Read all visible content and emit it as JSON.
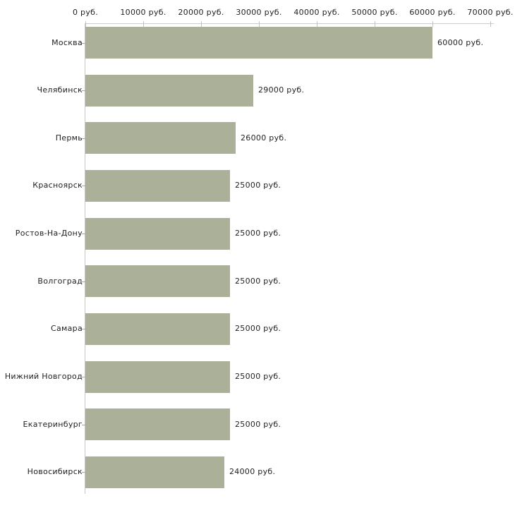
{
  "chart_data": {
    "type": "bar",
    "orientation": "horizontal",
    "title": "",
    "categories": [
      "Москва",
      "Челябинск",
      "Пермь",
      "Красноярск",
      "Ростов-На-Дону",
      "Волгоград",
      "Самара",
      "Нижний Новгород",
      "Екатеринбург",
      "Новосибирск"
    ],
    "values": [
      60000,
      29000,
      26000,
      25000,
      25000,
      25000,
      25000,
      25000,
      25000,
      24000
    ],
    "value_labels": [
      "60000 руб.",
      "29000 руб.",
      "26000 руб.",
      "25000 руб.",
      "25000 руб.",
      "25000 руб.",
      "25000 руб.",
      "25000 руб.",
      "25000 руб.",
      "24000 руб."
    ],
    "x_tick_values": [
      0,
      10000,
      20000,
      30000,
      40000,
      50000,
      60000,
      70000
    ],
    "x_tick_labels": [
      "0 руб.",
      "10000 руб.",
      "20000 руб.",
      "30000 руб.",
      "40000 руб.",
      "50000 руб.",
      "60000 руб.",
      "70000 руб."
    ],
    "xlim": [
      0,
      70000
    ],
    "unit": "руб.",
    "grid": false,
    "legend": false
  },
  "colors": {
    "bar": "#abb198",
    "x_axis_line": "#cdcec0",
    "y_axis_line": "#c6c6c6",
    "x_tick": "#c3c7a2",
    "y_tick": "#a8a8a0",
    "text": "#222222",
    "background": "#ffffff"
  }
}
